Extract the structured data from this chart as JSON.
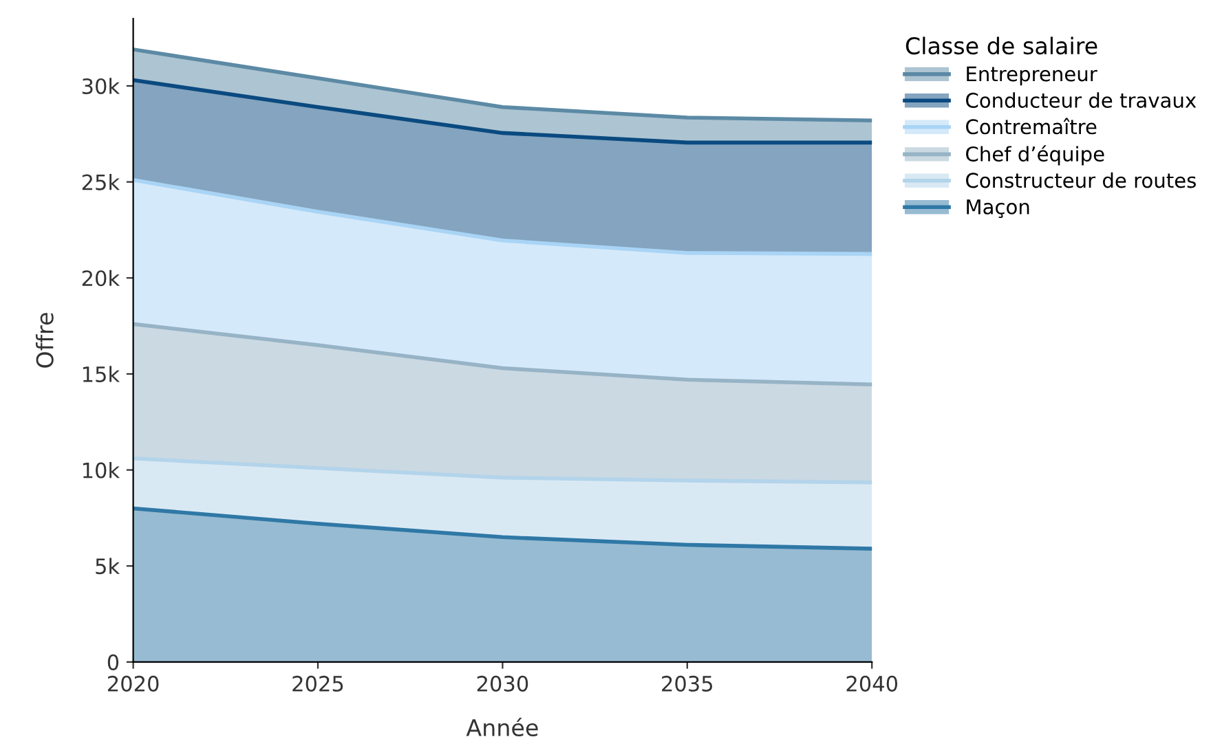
{
  "chart_data": {
    "type": "area",
    "stacked": true,
    "xlabel": "Année",
    "ylabel": "Offre",
    "legend_title": "Classe de salaire",
    "legend": "top right",
    "grid": false,
    "x": [
      2020,
      2025,
      2030,
      2035,
      2040
    ],
    "xlim": [
      2020,
      2040
    ],
    "xticks": [
      2020,
      2025,
      2030,
      2035,
      2040
    ],
    "ylim": [
      0,
      33500
    ],
    "yticks": [
      0,
      {
        "value": 5000,
        "label": "5k"
      },
      {
        "value": 10000,
        "label": "10k"
      },
      {
        "value": 15000,
        "label": "15k"
      },
      {
        "value": 20000,
        "label": "20k"
      },
      {
        "value": 25000,
        "label": "25k"
      },
      {
        "value": 30000,
        "label": "30k"
      }
    ],
    "series": [
      {
        "name": "Maçon",
        "color": "#2f78a6",
        "values": [
          8000,
          7200,
          6500,
          6100,
          5900
        ]
      },
      {
        "name": "Constructeur de routes",
        "color": "#b3d4ea",
        "values": [
          2600,
          2900,
          3100,
          3350,
          3450
        ]
      },
      {
        "name": "Chef d’équipe",
        "color": "#97b3c6",
        "values": [
          7000,
          6400,
          5700,
          5250,
          5100
        ]
      },
      {
        "name": "Contremaître",
        "color": "#a9d4f5",
        "values": [
          7500,
          6950,
          6650,
          6600,
          6800
        ]
      },
      {
        "name": "Conducteur de travaux",
        "color": "#0a4a80",
        "values": [
          5200,
          5450,
          5600,
          5750,
          5800
        ]
      },
      {
        "name": "Entrepreneur",
        "color": "#5c8aa5",
        "values": [
          1600,
          1500,
          1350,
          1300,
          1150
        ]
      }
    ]
  }
}
